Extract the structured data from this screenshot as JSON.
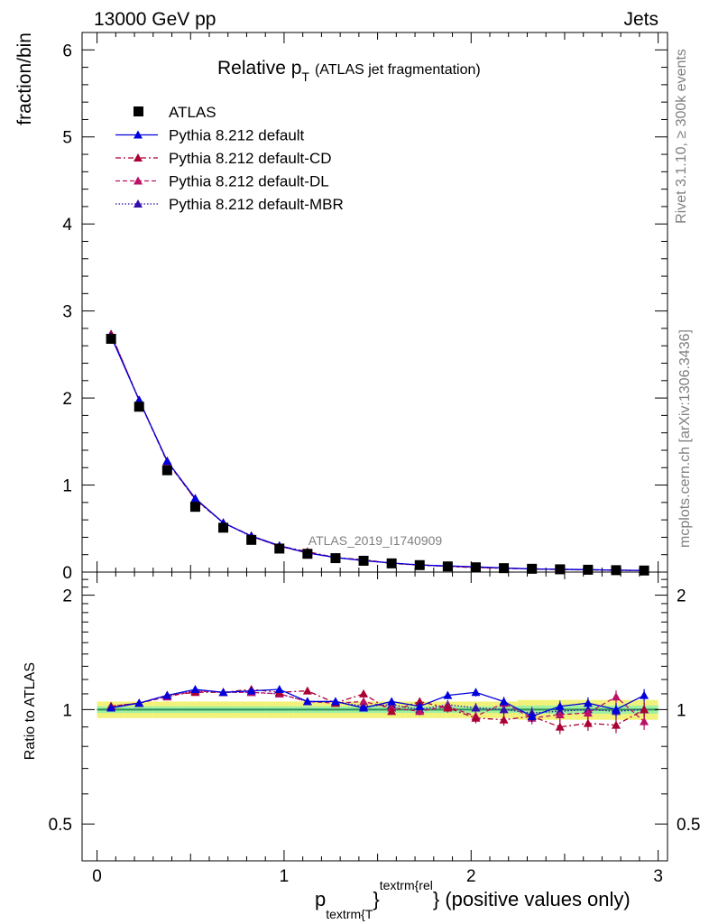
{
  "header": {
    "left": "13000 GeV pp",
    "right": "Jets"
  },
  "side_labels": {
    "rivet": "Rivet 3.1.10, ≥ 300k events",
    "mcplots": "mcplots.cern.ch [arXiv:1306.3436]"
  },
  "colors": {
    "data": "#000000",
    "default": "#0000dd",
    "cd": "#aa0033",
    "dl": "#bb1166",
    "mbr": "#3311aa",
    "band_outer": "#f2f27a",
    "band_inner": "#9ff0a0",
    "ratio_line": "#2e8b57"
  },
  "chart_data": {
    "type": "line",
    "title_main": "Relative p",
    "title_sub": "T",
    "title_rest": "(ATLAS jet fragmentation)",
    "watermark": "ATLAS_2019_I1740909",
    "xlabel_p": "p",
    "xlabel_sub": "textrm{T",
    "xlabel_sup": "textrm{rel",
    "xlabel_rest": "} (positive values only)",
    "xlabel_brace": "}",
    "ylabel": "fraction/bin",
    "ratio_ylabel": "Ratio to ATLAS",
    "xlim": [
      -0.08,
      3.05
    ],
    "ylim": [
      0,
      6.2
    ],
    "ratio_ylim": [
      0.4,
      2.3
    ],
    "xticks": [
      "0",
      "1",
      "2",
      "3"
    ],
    "yticks": [
      "0",
      "1",
      "2",
      "3",
      "4",
      "5",
      "6"
    ],
    "ratio_yticks": [
      "0.5",
      "1",
      "2"
    ],
    "x": [
      0.075,
      0.225,
      0.375,
      0.525,
      0.675,
      0.825,
      0.975,
      1.125,
      1.275,
      1.425,
      1.575,
      1.725,
      1.875,
      2.025,
      2.175,
      2.325,
      2.475,
      2.625,
      2.775,
      2.925
    ],
    "legend": [
      "ATLAS",
      "Pythia 8.212 default",
      "Pythia 8.212 default-CD",
      "Pythia 8.212 default-DL",
      "Pythia 8.212 default-MBR"
    ],
    "data_values": [
      2.68,
      1.9,
      1.17,
      0.75,
      0.51,
      0.37,
      0.27,
      0.21,
      0.16,
      0.13,
      0.1,
      0.08,
      0.065,
      0.055,
      0.045,
      0.038,
      0.032,
      0.027,
      0.022,
      0.018
    ],
    "band_outer": [
      0.05,
      0.05,
      0.05,
      0.05,
      0.05,
      0.05,
      0.05,
      0.05,
      0.05,
      0.05,
      0.05,
      0.05,
      0.05,
      0.05,
      0.05,
      0.06,
      0.06,
      0.06,
      0.06,
      0.06
    ],
    "band_inner": [
      0.02,
      0.02,
      0.02,
      0.02,
      0.02,
      0.02,
      0.02,
      0.02,
      0.02,
      0.02,
      0.02,
      0.02,
      0.02,
      0.02,
      0.02,
      0.025,
      0.025,
      0.025,
      0.025,
      0.025
    ],
    "series": [
      {
        "name": "Pythia 8.212 default",
        "key": "default",
        "dash": "",
        "ratio": [
          1.01,
          1.04,
          1.09,
          1.13,
          1.11,
          1.12,
          1.13,
          1.05,
          1.05,
          1.01,
          1.05,
          1.02,
          1.09,
          1.11,
          1.05,
          0.96,
          1.02,
          1.04,
          1.0,
          1.09
        ],
        "err": [
          0.005,
          0.005,
          0.006,
          0.007,
          0.008,
          0.009,
          0.01,
          0.012,
          0.015,
          0.017,
          0.02,
          0.022,
          0.025,
          0.027,
          0.03,
          0.032,
          0.035,
          0.037,
          0.04,
          0.042
        ]
      },
      {
        "name": "Pythia 8.212 default-CD",
        "key": "cd",
        "dash": "6,3,2,3",
        "ratio": [
          1.02,
          1.04,
          1.09,
          1.11,
          1.11,
          1.13,
          1.11,
          1.12,
          1.04,
          1.1,
          0.99,
          1.05,
          1.01,
          0.95,
          0.94,
          0.96,
          0.9,
          0.92,
          0.91,
          1.0
        ],
        "err": [
          0.006,
          0.006,
          0.007,
          0.008,
          0.009,
          0.01,
          0.012,
          0.014,
          0.016,
          0.019,
          0.022,
          0.025,
          0.028,
          0.03,
          0.033,
          0.036,
          0.038,
          0.041,
          0.043,
          0.046
        ]
      },
      {
        "name": "Pythia 8.212 default-DL",
        "key": "dl",
        "dash": "5,3",
        "ratio": [
          1.02,
          1.04,
          1.08,
          1.12,
          1.11,
          1.11,
          1.1,
          1.05,
          1.04,
          1.05,
          1.01,
          0.99,
          1.02,
          0.96,
          1.04,
          0.95,
          0.97,
          0.98,
          1.08,
          0.93
        ],
        "err": [
          0.006,
          0.006,
          0.007,
          0.008,
          0.009,
          0.01,
          0.012,
          0.014,
          0.016,
          0.019,
          0.022,
          0.025,
          0.028,
          0.03,
          0.033,
          0.036,
          0.038,
          0.041,
          0.043,
          0.046
        ]
      },
      {
        "name": "Pythia 8.212 default-MBR",
        "key": "mbr",
        "dash": "1.5,2",
        "ratio": [
          1.02,
          1.04,
          1.09,
          1.12,
          1.11,
          1.11,
          1.1,
          1.05,
          1.05,
          1.02,
          1.03,
          1.0,
          1.03,
          1.01,
          1.0,
          0.98,
          0.99,
          1.0,
          0.99,
          1.0
        ],
        "err": [
          0.006,
          0.006,
          0.007,
          0.008,
          0.009,
          0.01,
          0.012,
          0.014,
          0.016,
          0.019,
          0.022,
          0.025,
          0.028,
          0.03,
          0.033,
          0.036,
          0.038,
          0.041,
          0.043,
          0.046
        ]
      }
    ]
  }
}
